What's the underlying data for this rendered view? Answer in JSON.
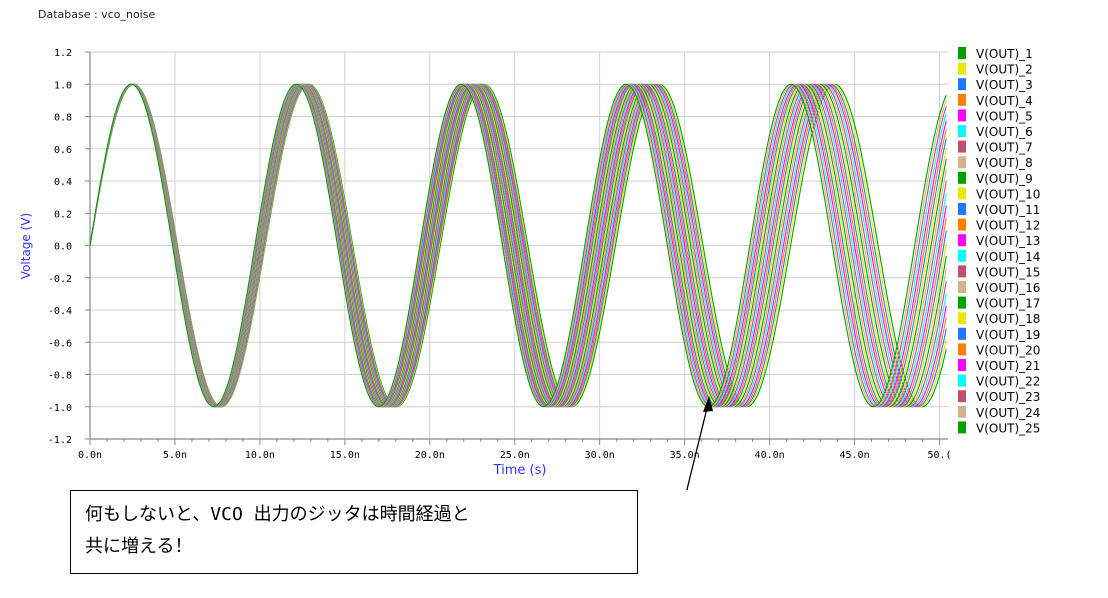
{
  "header": {
    "database_label": "Database : vco_noise"
  },
  "callout": {
    "line1": "何もしないと、VCO 出力のジッタは時間経過と",
    "line2": "共に増える！"
  },
  "chart_data": {
    "type": "line",
    "xlabel": "Time (s)",
    "ylabel": "Voltage (V)",
    "xlim": [
      0,
      50.5
    ],
    "ylim": [
      -1.2,
      1.2
    ],
    "x_ticks": [
      "0.0n",
      "5.0n",
      "10.0n",
      "15.0n",
      "20.0n",
      "25.0n",
      "30.0n",
      "35.0n",
      "40.0n",
      "45.0n",
      "50.("
    ],
    "y_ticks": [
      "1.2",
      "1.0",
      "0.8",
      "0.6",
      "0.4",
      "0.2",
      "0.0",
      "-0.2",
      "-0.4",
      "-0.6",
      "-0.8",
      "-1.0",
      "-1.2"
    ],
    "grid": true,
    "legend_position": "right",
    "waveform": {
      "amplitude": 1.0,
      "period_ns": 10.0,
      "jitter_spread_per_period_ns": 0.3
    },
    "series": [
      {
        "name": "V(OUT)_1",
        "color": "#00a000"
      },
      {
        "name": "V(OUT)_2",
        "color": "#e8e800"
      },
      {
        "name": "V(OUT)_3",
        "color": "#1e78ff"
      },
      {
        "name": "V(OUT)_4",
        "color": "#ff7f00"
      },
      {
        "name": "V(OUT)_5",
        "color": "#ff00ff"
      },
      {
        "name": "V(OUT)_6",
        "color": "#00ffff"
      },
      {
        "name": "V(OUT)_7",
        "color": "#c0506a"
      },
      {
        "name": "V(OUT)_8",
        "color": "#d2b48c"
      },
      {
        "name": "V(OUT)_9",
        "color": "#00a000"
      },
      {
        "name": "V(OUT)_10",
        "color": "#e8e800"
      },
      {
        "name": "V(OUT)_11",
        "color": "#1e78ff"
      },
      {
        "name": "V(OUT)_12",
        "color": "#ff7f00"
      },
      {
        "name": "V(OUT)_13",
        "color": "#ff00ff"
      },
      {
        "name": "V(OUT)_14",
        "color": "#00ffff"
      },
      {
        "name": "V(OUT)_15",
        "color": "#c0506a"
      },
      {
        "name": "V(OUT)_16",
        "color": "#d2b48c"
      },
      {
        "name": "V(OUT)_17",
        "color": "#00a000"
      },
      {
        "name": "V(OUT)_18",
        "color": "#e8e800"
      },
      {
        "name": "V(OUT)_19",
        "color": "#1e78ff"
      },
      {
        "name": "V(OUT)_20",
        "color": "#ff7f00"
      },
      {
        "name": "V(OUT)_21",
        "color": "#ff00ff"
      },
      {
        "name": "V(OUT)_22",
        "color": "#00ffff"
      },
      {
        "name": "V(OUT)_23",
        "color": "#c0506a"
      },
      {
        "name": "V(OUT)_24",
        "color": "#d2b48c"
      },
      {
        "name": "V(OUT)_25",
        "color": "#00a000"
      }
    ]
  }
}
